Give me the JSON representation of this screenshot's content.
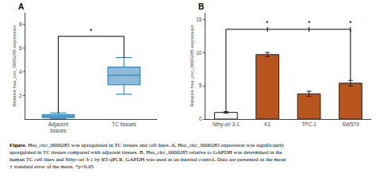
{
  "chart_data": [
    {
      "type": "box",
      "title": "A",
      "ylabel": "Relative hsa_circ_0000285 expression",
      "categories": [
        "Adjacent\ntissues",
        "TC tissues"
      ],
      "median": [
        0.25,
        3.7
      ],
      "q1": [
        0.12,
        2.9
      ],
      "q3": [
        0.38,
        4.4
      ],
      "whislo": [
        0.04,
        2.1
      ],
      "whishi": [
        0.52,
        5.2
      ],
      "ylim": [
        0,
        9
      ],
      "yticks": [
        2,
        4,
        6,
        8
      ],
      "grid": false,
      "brackets": [
        {
          "from": 0,
          "to": 1,
          "y": 7.0,
          "label": "*"
        }
      ]
    },
    {
      "type": "bar",
      "title": "B",
      "ylabel": "Relative hsa_circ_0000285 expression",
      "categories": [
        "Nthy-ori 3-1",
        "K1",
        "TPC-1",
        "SW579"
      ],
      "values": [
        1.0,
        9.7,
        3.8,
        5.4
      ],
      "errors": [
        0.12,
        0.32,
        0.38,
        0.42
      ],
      "colors": [
        "#f5f5f5",
        "#b8541e",
        "#b8541e",
        "#b8541e"
      ],
      "ylim": [
        0,
        16
      ],
      "yticks": [
        0,
        5,
        10,
        15
      ],
      "grid": false,
      "brackets": [
        {
          "from": 0,
          "to": 3,
          "y": 13.5,
          "marks": [
            1,
            2,
            3
          ],
          "label": "*"
        }
      ]
    }
  ],
  "caption": [
    "Figure.",
    " Hsa_circ_0000285 was upregulated in TC tissues and cell lines. A, Hsa_circ_0000285 expression was significantly\nupregulated in TC tissues compared with adjacent tissues. B, Hsa_circ_0000285 relative to GAPDH was determined in the\nhuman TC cell lines and Nthy-ori 3-1 by RT-qPCR. GAPDH was used as an internal control. Data are presented as the mean\n± standard error of the mean. *p<0.05"
  ]
}
